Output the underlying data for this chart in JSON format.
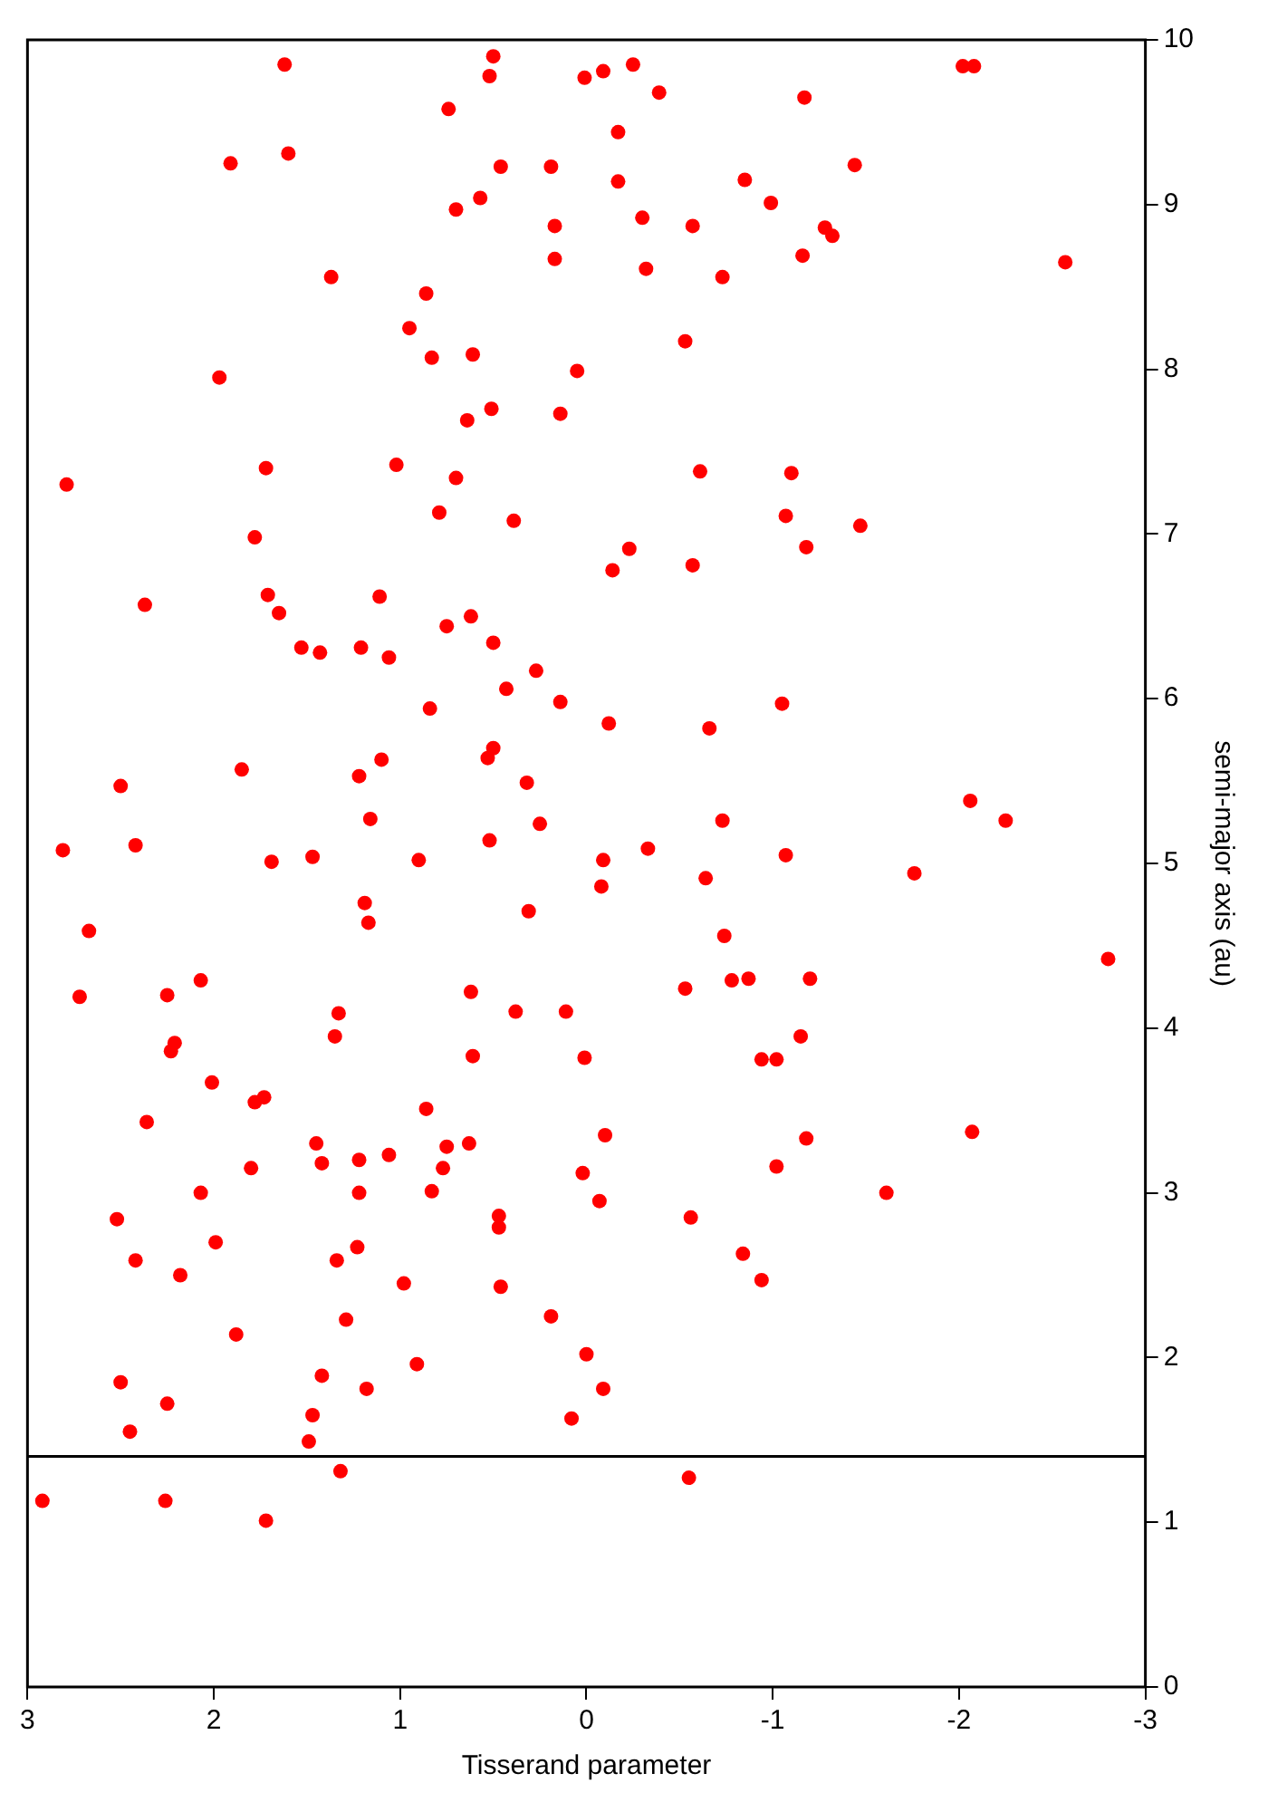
{
  "chart_data": {
    "type": "scatter",
    "xlabel": "Tisserand parameter",
    "ylabel": "semi-major axis (au)",
    "xlim": [
      3,
      -3
    ],
    "xticks": [
      3,
      2,
      1,
      0,
      -1,
      -2,
      -3
    ],
    "ylim": [
      0,
      10
    ],
    "yticks": [
      0,
      1,
      2,
      3,
      4,
      5,
      6,
      7,
      8,
      9,
      10
    ],
    "marker": "circle",
    "grid": false,
    "legend": false,
    "ref_lines": [
      {
        "axis": "y",
        "value": 1.4,
        "color": "#000000"
      }
    ],
    "series": [
      {
        "color": "#ff0000",
        "x": [
          1.62,
          0.5,
          0.52,
          0.01,
          -0.09,
          -0.25,
          -0.39,
          0.74,
          -1.17,
          -2.02,
          -2.08,
          -0.17,
          1.91,
          1.6,
          0.46,
          0.19,
          -0.17,
          -0.85,
          -1.44,
          0.7,
          0.57,
          -0.99,
          0.17,
          -0.3,
          -0.57,
          -1.28,
          -1.32,
          0.17,
          -1.16,
          -0.32,
          -2.57,
          1.37,
          -0.73,
          0.86,
          0.95,
          -0.53,
          0.83,
          0.61,
          1.97,
          0.05,
          0.51,
          0.64,
          0.14,
          2.79,
          1.72,
          1.02,
          0.7,
          -0.61,
          -1.1,
          0.79,
          0.39,
          -1.07,
          -1.47,
          1.78,
          -1.18,
          -0.23,
          -0.14,
          -0.57,
          1.71,
          2.37,
          1.11,
          1.65,
          0.62,
          0.75,
          1.53,
          1.43,
          1.21,
          1.06,
          0.5,
          0.27,
          0.43,
          0.84,
          0.14,
          -1.05,
          -0.12,
          -0.66,
          1.85,
          1.1,
          0.5,
          0.53,
          1.22,
          0.32,
          2.5,
          1.16,
          0.25,
          -0.73,
          -2.06,
          -2.25,
          2.81,
          2.42,
          0.52,
          -0.33,
          1.69,
          1.47,
          0.9,
          -0.09,
          -0.08,
          -0.64,
          -1.07,
          -1.76,
          1.19,
          1.17,
          0.31,
          2.67,
          -0.74,
          -2.8,
          2.72,
          2.25,
          2.07,
          0.62,
          -0.53,
          -0.78,
          -0.87,
          -1.2,
          1.33,
          0.38,
          0.11,
          1.35,
          2.23,
          2.21,
          0.61,
          0.01,
          -0.94,
          -1.02,
          -1.15,
          2.01,
          1.78,
          1.73,
          2.36,
          0.86,
          1.45,
          1.42,
          1.22,
          1.06,
          0.75,
          0.77,
          0.63,
          1.8,
          -0.1,
          0.02,
          -1.02,
          -1.18,
          -2.07,
          2.07,
          1.22,
          0.83,
          -0.07,
          -1.61,
          0.47,
          2.52,
          0.47,
          -0.56,
          2.42,
          2.18,
          1.99,
          1.34,
          1.23,
          0.98,
          0.46,
          -0.84,
          -0.94,
          1.88,
          1.29,
          0.19,
          0.91,
          0.0,
          2.5,
          1.42,
          1.18,
          -0.09,
          2.25,
          2.45,
          1.47,
          1.49,
          0.08,
          1.32,
          -0.55,
          2.92,
          2.26,
          1.72
        ],
        "values": [
          9.85,
          9.9,
          9.78,
          9.77,
          9.81,
          9.85,
          9.68,
          9.58,
          9.65,
          9.84,
          9.84,
          9.44,
          9.25,
          9.31,
          9.23,
          9.23,
          9.14,
          9.15,
          9.24,
          8.97,
          9.04,
          9.01,
          8.87,
          8.92,
          8.87,
          8.86,
          8.81,
          8.67,
          8.69,
          8.61,
          8.65,
          8.56,
          8.56,
          8.46,
          8.25,
          8.17,
          8.07,
          8.09,
          7.95,
          7.99,
          7.76,
          7.69,
          7.73,
          7.3,
          7.4,
          7.42,
          7.34,
          7.38,
          7.37,
          7.13,
          7.08,
          7.11,
          7.05,
          6.98,
          6.92,
          6.91,
          6.78,
          6.81,
          6.63,
          6.57,
          6.62,
          6.52,
          6.5,
          6.44,
          6.31,
          6.28,
          6.31,
          6.25,
          6.34,
          6.17,
          6.06,
          5.94,
          5.98,
          5.97,
          5.85,
          5.82,
          5.57,
          5.63,
          5.7,
          5.64,
          5.53,
          5.49,
          5.47,
          5.27,
          5.24,
          5.26,
          5.38,
          5.26,
          5.08,
          5.11,
          5.14,
          5.09,
          5.01,
          5.04,
          5.02,
          5.02,
          4.86,
          4.91,
          5.05,
          4.94,
          4.76,
          4.64,
          4.71,
          4.59,
          4.56,
          4.42,
          4.19,
          4.2,
          4.29,
          4.22,
          4.24,
          4.29,
          4.3,
          4.3,
          4.09,
          4.1,
          4.1,
          3.95,
          3.86,
          3.91,
          3.83,
          3.82,
          3.81,
          3.81,
          3.95,
          3.67,
          3.55,
          3.58,
          3.43,
          3.51,
          3.3,
          3.18,
          3.2,
          3.23,
          3.28,
          3.15,
          3.3,
          3.15,
          3.35,
          3.12,
          3.16,
          3.33,
          3.37,
          3.0,
          3.0,
          3.01,
          2.95,
          3.0,
          2.86,
          2.84,
          2.79,
          2.85,
          2.59,
          2.5,
          2.7,
          2.59,
          2.67,
          2.45,
          2.43,
          2.63,
          2.47,
          2.14,
          2.23,
          2.25,
          1.96,
          2.02,
          1.85,
          1.89,
          1.81,
          1.81,
          1.72,
          1.55,
          1.65,
          1.49,
          1.63,
          1.31,
          1.27,
          1.13,
          1.13,
          1.01
        ]
      }
    ]
  }
}
